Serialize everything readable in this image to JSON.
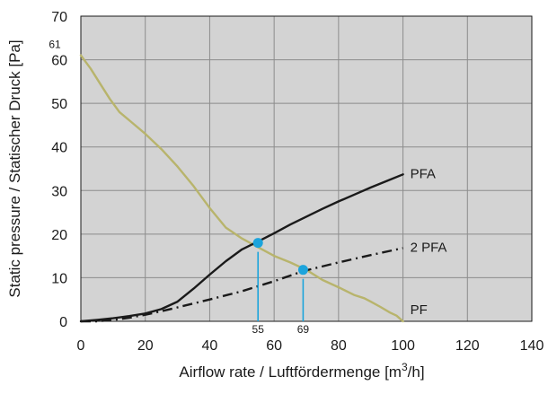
{
  "chart_data": {
    "type": "line",
    "xlabel_main": "Airflow rate / Luftfördermenge [m",
    "xlabel_sup": "3",
    "xlabel_end": "/h]",
    "ylabel": "Static pressure / Statischer Druck [Pa]",
    "xlim": [
      0,
      140
    ],
    "ylim": [
      0,
      70
    ],
    "xticks": [
      0,
      20,
      40,
      60,
      80,
      100,
      120,
      140
    ],
    "yticks": [
      0,
      10,
      20,
      30,
      40,
      50,
      60,
      70
    ],
    "grid": true,
    "plot_background": "#d3d3d3",
    "grid_color": "#8c8c8c",
    "series": [
      {
        "name": "PF",
        "color": "#b8b46c",
        "dash": "solid",
        "x": [
          0,
          3,
          6,
          9,
          12,
          16,
          20,
          25,
          30,
          35,
          40,
          45,
          50,
          55,
          60,
          65,
          70,
          75,
          80,
          85,
          88,
          90,
          93,
          96,
          98,
          100
        ],
        "y": [
          61,
          58,
          54.5,
          51,
          48,
          45.5,
          43,
          39.5,
          35.5,
          31,
          26,
          21.5,
          19,
          17,
          15,
          13.5,
          11.8,
          9.5,
          7.8,
          6,
          5.3,
          4.5,
          3.3,
          2,
          1.3,
          0
        ]
      },
      {
        "name": "PFA",
        "color": "#1a1a1a",
        "dash": "solid",
        "x": [
          0,
          5,
          10,
          15,
          20,
          25,
          30,
          35,
          40,
          45,
          50,
          55,
          60,
          65,
          70,
          75,
          80,
          85,
          90,
          95,
          100
        ],
        "y": [
          0,
          0.3,
          0.7,
          1.2,
          1.8,
          2.8,
          4.5,
          7.5,
          10.7,
          13.8,
          16.5,
          18.3,
          20.2,
          22.2,
          24,
          25.8,
          27.5,
          29.1,
          30.7,
          32.2,
          33.7
        ]
      },
      {
        "name": "2 PFA",
        "color": "#1a1a1a",
        "dash": "dashdot",
        "x": [
          0,
          5,
          10,
          15,
          20,
          25,
          30,
          40,
          50,
          60,
          69,
          80,
          90,
          100
        ],
        "y": [
          0,
          0,
          0.3,
          0.8,
          1.5,
          2.3,
          3.2,
          5,
          6.9,
          9.2,
          11.5,
          13.5,
          15.2,
          16.8
        ]
      }
    ],
    "markers": [
      {
        "label": "55",
        "x": 55,
        "y": 18,
        "color": "#1ca4dc"
      },
      {
        "label": "69",
        "x": 69,
        "y": 11.8,
        "color": "#1ca4dc"
      }
    ],
    "annotations": [
      {
        "text": "61",
        "target": "y-axis",
        "y": 61
      }
    ]
  }
}
